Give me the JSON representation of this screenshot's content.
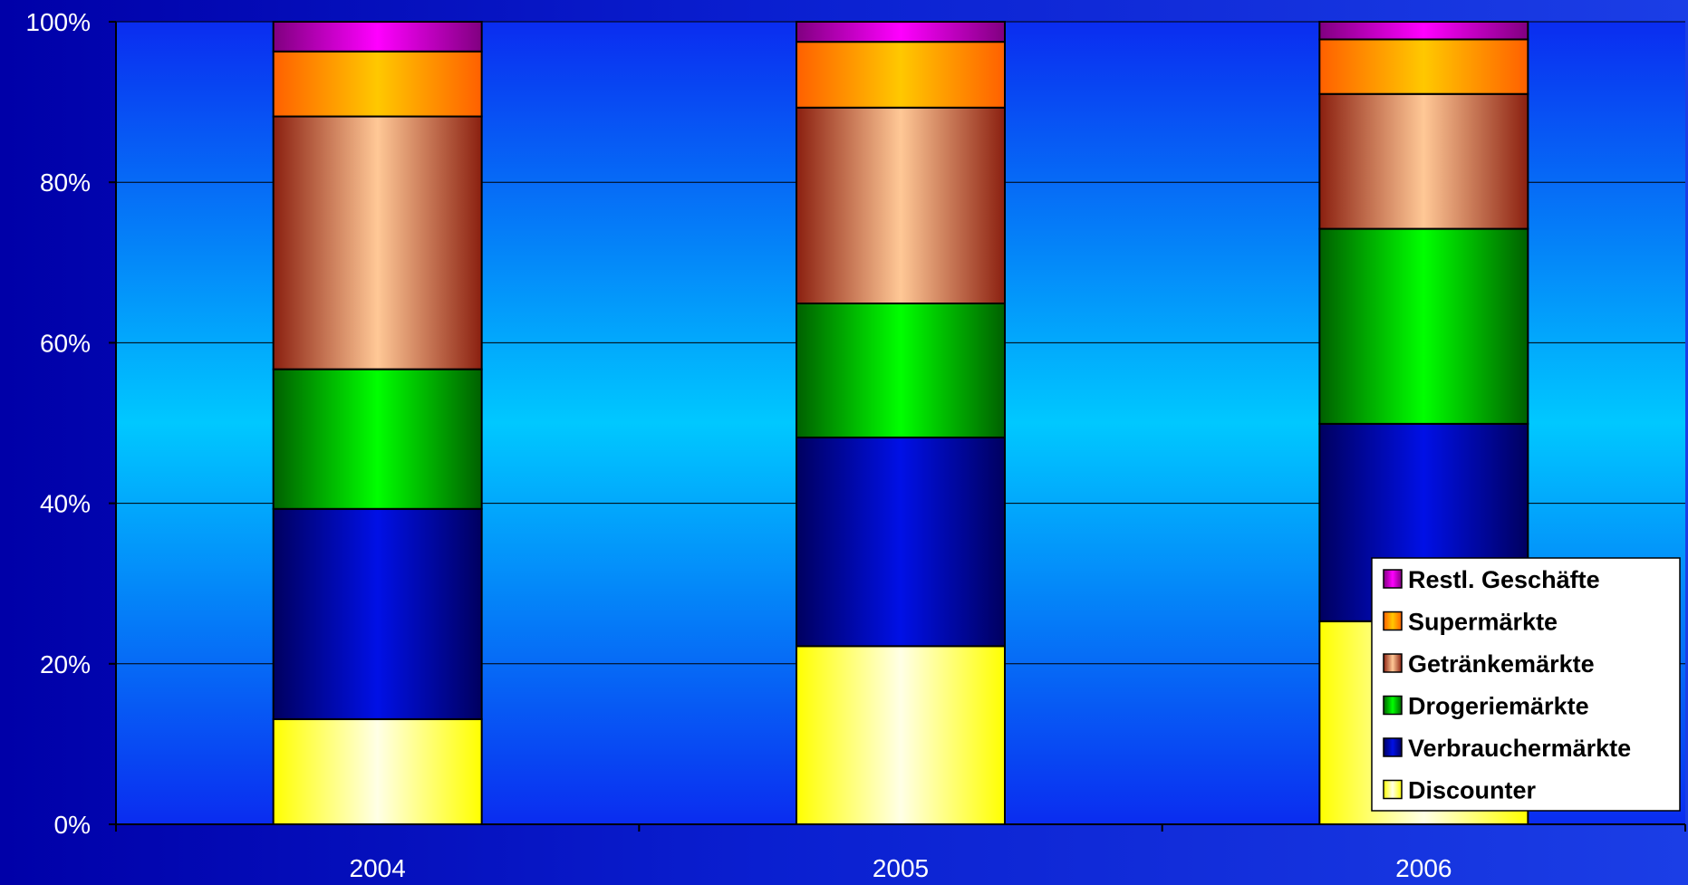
{
  "chart_data": {
    "type": "bar",
    "stacked": true,
    "percent": true,
    "categories": [
      "2004",
      "2005",
      "2006"
    ],
    "series": [
      {
        "name": "Discounter",
        "color": "#ffff33",
        "values": [
          13.1,
          22.2,
          25.3
        ]
      },
      {
        "name": "Verbrauchermärkte",
        "color": "#0010e0",
        "values": [
          26.2,
          26.0,
          24.6
        ]
      },
      {
        "name": "Drogeriemärkte",
        "color": "#00e000",
        "values": [
          17.4,
          16.7,
          24.3
        ]
      },
      {
        "name": "Getränkemärkte",
        "color": "#ffc090",
        "values": [
          31.5,
          24.4,
          16.8
        ]
      },
      {
        "name": "Supermärkte",
        "color": "#ff9900",
        "values": [
          8.1,
          8.2,
          6.8
        ]
      },
      {
        "name": "Restl. Geschäfte",
        "color": "#ff00ff",
        "values": [
          3.7,
          2.5,
          2.2
        ]
      }
    ],
    "y_ticks": [
      "0%",
      "20%",
      "40%",
      "60%",
      "80%",
      "100%"
    ],
    "ylim": [
      0,
      100
    ],
    "grid": true,
    "legend_position": "bottom-right"
  }
}
